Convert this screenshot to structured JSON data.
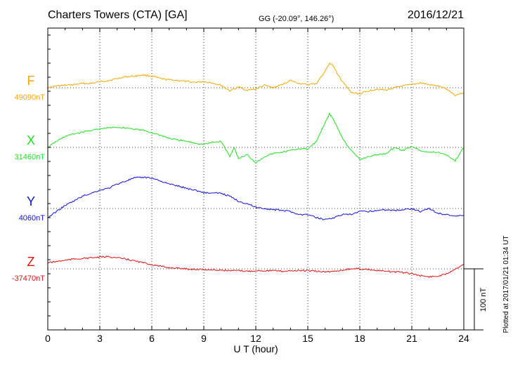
{
  "header": {
    "station": "Charters Towers (CTA)  [GA]",
    "coords": "GG (-20.09°, 146.26°)",
    "date": "2016/12/21"
  },
  "plotted_note": "Plotted at 2017/01/21 01:34 UT",
  "scale_label": "100 nT",
  "chart_data": {
    "type": "line",
    "title": "Charters Towers (CTA)  [GA]",
    "xlabel": "U T (hour)",
    "ylabel": "",
    "xlim": [
      0,
      24
    ],
    "x_ticks": [
      0,
      3,
      6,
      9,
      12,
      15,
      18,
      21,
      24
    ],
    "x_tick_labels": [
      "0",
      "3",
      "6",
      "9",
      "12",
      "15",
      "18",
      "21",
      "24"
    ],
    "grid": true,
    "y_units": "nT (offset from baseline, 100 nT scale bar)",
    "series": [
      {
        "name": "F",
        "baseline_label": "49090nT",
        "color": "#f0a800",
        "x": [
          0,
          0.5,
          1,
          1.5,
          2,
          2.5,
          3,
          3.5,
          4,
          4.5,
          5,
          5.5,
          6,
          6.5,
          7,
          7.5,
          8,
          8.5,
          9,
          9.5,
          10,
          10.5,
          11,
          11.5,
          12,
          12.5,
          13,
          13.5,
          14,
          14.5,
          15,
          15.5,
          16,
          16.25,
          16.5,
          16.75,
          17,
          17.5,
          18,
          18.5,
          19,
          19.5,
          20,
          20.5,
          21,
          21.5,
          22,
          22.5,
          23,
          23.5,
          24
        ],
        "y": [
          0,
          3,
          4,
          5,
          7,
          7,
          10,
          12,
          15,
          18,
          19,
          21,
          19,
          15,
          13,
          12,
          10,
          9,
          10,
          8,
          4,
          -5,
          1,
          -4,
          -2,
          4,
          0,
          5,
          12,
          7,
          5,
          7,
          27,
          40,
          35,
          20,
          10,
          -8,
          -10,
          -5,
          -2,
          -4,
          0,
          3,
          5,
          8,
          5,
          3,
          -2,
          -12,
          -8
        ]
      },
      {
        "name": "X",
        "baseline_label": "31460nT",
        "color": "#22dd22",
        "x": [
          0,
          0.5,
          1,
          1.5,
          2,
          2.5,
          3,
          3.5,
          4,
          4.5,
          5,
          5.5,
          6,
          6.5,
          7,
          7.5,
          8,
          8.5,
          9,
          9.5,
          10,
          10.5,
          10.75,
          11,
          11.5,
          12,
          12.5,
          13,
          13.5,
          14,
          14.5,
          15,
          15.5,
          16,
          16.25,
          16.5,
          17,
          17.5,
          18,
          18.5,
          19,
          19.5,
          20,
          20.5,
          21,
          21.5,
          22,
          22.5,
          23,
          23.5,
          24
        ],
        "y": [
          0,
          10,
          18,
          22,
          25,
          28,
          30,
          32,
          33,
          32,
          30,
          28,
          24,
          20,
          15,
          12,
          10,
          7,
          5,
          8,
          10,
          -15,
          0,
          -18,
          -12,
          -25,
          -15,
          -10,
          -8,
          -5,
          -2,
          -3,
          10,
          40,
          55,
          45,
          15,
          -5,
          -20,
          -15,
          -12,
          -10,
          0,
          -5,
          2,
          -5,
          -8,
          -8,
          -12,
          -22,
          0
        ]
      },
      {
        "name": "Y",
        "baseline_label": "4060nT",
        "color": "#1010dd",
        "x": [
          0,
          0.5,
          1,
          1.5,
          2,
          2.5,
          3,
          3.5,
          4,
          4.5,
          5,
          5.5,
          6,
          6.5,
          7,
          7.5,
          8,
          8.5,
          9,
          9.5,
          10,
          10.5,
          11,
          11.5,
          12,
          12.5,
          13,
          13.5,
          14,
          14.5,
          15,
          15.5,
          16,
          16.5,
          17,
          17.5,
          18,
          18.5,
          19,
          19.5,
          20,
          20.5,
          21,
          21.5,
          22,
          22.5,
          23,
          23.5,
          24
        ],
        "y": [
          -15,
          -5,
          5,
          12,
          20,
          25,
          30,
          33,
          40,
          45,
          50,
          51,
          50,
          45,
          40,
          37,
          33,
          30,
          26,
          25,
          25,
          20,
          12,
          8,
          2,
          0,
          -2,
          -3,
          -5,
          -10,
          -10,
          -15,
          -18,
          -15,
          -10,
          -10,
          -5,
          -5,
          -3,
          -2,
          -3,
          -2,
          0,
          -5,
          0,
          -8,
          -10,
          -12,
          -12
        ]
      },
      {
        "name": "Z",
        "baseline_label": "-37470nT",
        "color": "#e01010",
        "x": [
          0,
          0.5,
          1,
          1.5,
          2,
          2.5,
          3,
          3.5,
          4,
          4.5,
          5,
          5.5,
          6,
          6.5,
          7,
          7.5,
          8,
          8.5,
          9,
          9.5,
          10,
          10.5,
          11,
          11.5,
          12,
          12.5,
          13,
          13.5,
          14,
          14.5,
          15,
          15.5,
          16,
          16.5,
          17,
          17.5,
          18,
          18.5,
          19,
          19.5,
          20,
          20.5,
          21,
          21.5,
          22,
          22.5,
          23,
          23.5,
          24
        ],
        "y": [
          10,
          12,
          14,
          16,
          17,
          18,
          19,
          20,
          18,
          16,
          13,
          10,
          7,
          4,
          2,
          1,
          0,
          -1,
          -1,
          -2,
          -2,
          -3,
          -3,
          -4,
          -3,
          -3,
          -3,
          -4,
          -3,
          -3,
          -3,
          -4,
          -5,
          -4,
          -2,
          0,
          0,
          -1,
          -3,
          -4,
          -5,
          -6,
          -8,
          -11,
          -13,
          -12,
          -8,
          0,
          8
        ]
      }
    ]
  }
}
